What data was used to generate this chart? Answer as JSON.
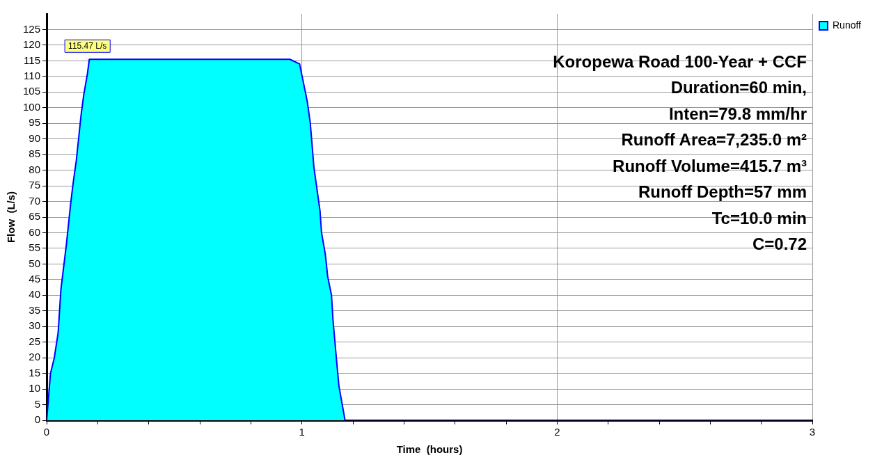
{
  "chart_data": {
    "type": "area",
    "xlabel": "Time  (hours)",
    "ylabel": "Flow  (L/s)",
    "x": [
      0,
      0.015,
      0.03,
      0.045,
      0.056,
      0.077,
      0.095,
      0.104,
      0.116,
      0.134,
      0.145,
      0.16,
      0.167,
      0.953,
      0.991,
      1.021,
      1.033,
      1.047,
      1.071,
      1.077,
      1.092,
      1.101,
      1.116,
      1.122,
      1.136,
      1.145,
      1.169,
      3
    ],
    "series": [
      {
        "name": "Runoff",
        "color": "#00ffff",
        "values": [
          0,
          15,
          20,
          28,
          42,
          56,
          70,
          76,
          83,
          97,
          104,
          111,
          115.47,
          115.47,
          114,
          102,
          95,
          81,
          67,
          60,
          53,
          46,
          40,
          32,
          19,
          11,
          0,
          0
        ]
      }
    ],
    "xlim": [
      0,
      3
    ],
    "xticks": [
      0,
      {
        "value": 0.2,
        "label": null
      },
      {
        "value": 0.4,
        "label": null
      },
      {
        "value": 0.6,
        "label": null
      },
      {
        "value": 0.8,
        "label": null
      },
      1,
      {
        "value": 1.2,
        "label": null
      },
      {
        "value": 1.4,
        "label": null
      },
      {
        "value": 1.6,
        "label": null
      },
      {
        "value": 1.8,
        "label": null
      },
      2,
      {
        "value": 2.2,
        "label": null
      },
      {
        "value": 2.4,
        "label": null
      },
      {
        "value": 2.6,
        "label": null
      },
      {
        "value": 2.8,
        "label": null
      },
      3
    ],
    "ylim": [
      0,
      130
    ],
    "yticks": [
      0,
      5,
      10,
      15,
      20,
      25,
      30,
      35,
      40,
      45,
      50,
      55,
      60,
      65,
      70,
      75,
      80,
      85,
      90,
      95,
      100,
      105,
      110,
      115,
      120,
      125
    ],
    "grid": true,
    "legend": "top right",
    "annotations": [
      {
        "text": "115.47 L/s",
        "x": 0.167,
        "y": 115.47
      },
      "Koropewa Road 100-Year + CCF",
      "Duration=60 min,",
      "Inten=79.8 mm/hr",
      "Runoff Area=7,235.0 m²",
      "Runoff Volume=415.7 m³",
      "Runoff Depth=57 mm",
      "Tc=10.0 min",
      "C=0.72"
    ]
  }
}
